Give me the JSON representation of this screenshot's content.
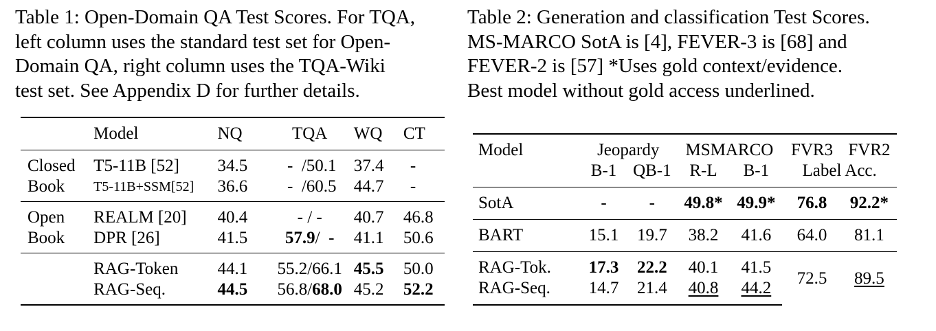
{
  "table1": {
    "caption_lines": [
      "Table 1: Open-Domain QA Test Scores. For TQA,",
      "left column uses the standard test set for Open-",
      "Domain QA, right column uses the TQA-Wiki",
      "test set. See Appendix D for further details."
    ],
    "headers": {
      "model": "Model",
      "nq": "NQ",
      "tqa": "TQA",
      "wq": "WQ",
      "ct": "CT"
    },
    "groups": [
      {
        "label_lines": [
          "Closed",
          "Book"
        ]
      },
      {
        "label_lines": [
          "Open",
          "Book"
        ]
      }
    ],
    "rows": [
      {
        "model": "T5-11B [52]",
        "nq": "34.5",
        "tqa_left": "-",
        "tqa_sep": "/",
        "tqa_right": "50.1",
        "wq": "37.4",
        "ct": "-"
      },
      {
        "model": "T5-11B+SSM[52]",
        "nq": "36.6",
        "tqa_left": "-",
        "tqa_sep": "/",
        "tqa_right": "60.5",
        "wq": "44.7",
        "ct": "-"
      },
      {
        "model": "REALM [20]",
        "nq": "40.4",
        "tqa_left": "-",
        "tqa_sep": "/",
        "tqa_right": "-",
        "wq": "40.7",
        "ct": "46.8"
      },
      {
        "model": "DPR [26]",
        "nq": "41.5",
        "tqa_left": "57.9",
        "tqa_sep": "/",
        "tqa_right": "-",
        "wq": "41.1",
        "ct": "50.6"
      },
      {
        "model": "RAG-Token",
        "nq": "44.1",
        "tqa_left": "55.2",
        "tqa_sep": "/",
        "tqa_right": "66.1",
        "wq": "45.5",
        "ct": "50.0"
      },
      {
        "model": "RAG-Seq.",
        "nq": "44.5",
        "tqa_left": "56.8",
        "tqa_sep": "/",
        "tqa_right": "68.0",
        "wq": "45.2",
        "ct": "52.2"
      }
    ]
  },
  "table2": {
    "caption_lines": [
      "Table 2: Generation and classification Test Scores.",
      "MS-MARCO SotA is [4], FEVER-3 is [68] and",
      "FEVER-2 is [57] *Uses gold context/evidence.",
      "Best model without gold access underlined."
    ],
    "headers": {
      "model": "Model",
      "jeopardy": "Jeopardy",
      "msmarco": "MSMARCO",
      "fvr3": "FVR3",
      "fvr2": "FVR2",
      "b1": "B-1",
      "qb1": "QB-1",
      "rl": "R-L",
      "b1b": "B-1",
      "label_acc": "Label Acc."
    },
    "rows": {
      "sota": {
        "model": "SotA",
        "j_b1": "-",
        "j_qb1": "-",
        "m_rl": "49.8*",
        "m_b1": "49.9*",
        "fvr3": "76.8",
        "fvr2": "92.2*"
      },
      "bart": {
        "model": "BART",
        "j_b1": "15.1",
        "j_qb1": "19.7",
        "m_rl": "38.2",
        "m_b1": "41.6",
        "fvr3": "64.0",
        "fvr2": "81.1"
      },
      "ragtok": {
        "model": "RAG-Tok.",
        "j_b1": "17.3",
        "j_qb1": "22.2",
        "m_rl": "40.1",
        "m_b1": "41.5"
      },
      "ragseq": {
        "model": "RAG-Seq.",
        "j_b1": "14.7",
        "j_qb1": "21.4",
        "m_rl": "40.8",
        "m_b1": "44.2"
      },
      "rag_shared": {
        "fvr3": "72.5",
        "fvr2": "89.5"
      }
    }
  }
}
